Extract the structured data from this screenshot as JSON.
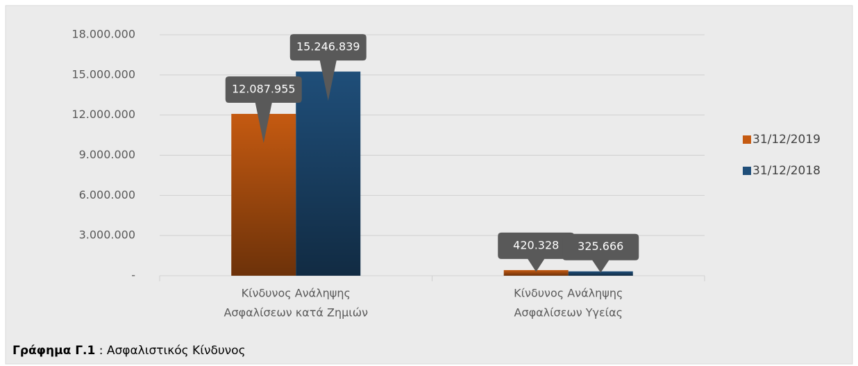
{
  "chart_data": {
    "type": "bar",
    "categories": [
      [
        "Κίνδυνος Ανάληψης",
        "Ασφαλίσεων κατά Ζημιών"
      ],
      [
        "Κίνδυνος Ανάληψης",
        "Ασφαλίσεων Υγείας"
      ]
    ],
    "series": [
      {
        "name": "31/12/2019",
        "color": "#c55a11",
        "values": [
          12087955,
          420328
        ],
        "value_labels": [
          "12.087.955",
          "420.328"
        ]
      },
      {
        "name": "31/12/2018",
        "color": "#1f4e79",
        "values": [
          15246839,
          325666
        ],
        "value_labels": [
          "15.246.839",
          "325.666"
        ]
      }
    ],
    "ylim": [
      0,
      18000000
    ],
    "yticks": [
      {
        "value": 0,
        "label": "-"
      },
      {
        "value": 3000000,
        "label": "3.000.000"
      },
      {
        "value": 6000000,
        "label": "6.000.000"
      },
      {
        "value": 9000000,
        "label": "9.000.000"
      },
      {
        "value": 12000000,
        "label": "12.000.000"
      },
      {
        "value": 15000000,
        "label": "15.000.000"
      },
      {
        "value": 18000000,
        "label": "18.000.000"
      }
    ],
    "grid": true,
    "legend": "right"
  },
  "caption": {
    "label": "Γράφημα Γ.1",
    "text": ": Ασφαλιστικός Κίνδυνος"
  }
}
